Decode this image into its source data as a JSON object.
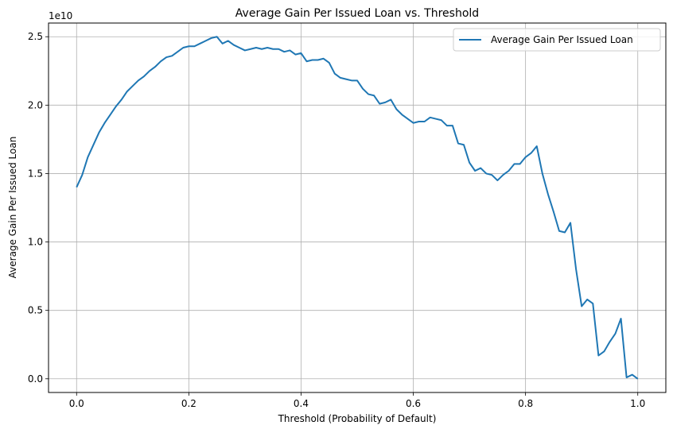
{
  "chart_data": {
    "type": "line",
    "title": "Average Gain Per Issued Loan vs. Threshold",
    "xlabel": "Threshold (Probability of Default)",
    "ylabel": "Average Gain Per Issued Loan",
    "y_offset_label": "1e10",
    "y_scale": 10000000000.0,
    "xlim": [
      -0.05,
      1.05
    ],
    "ylim": [
      -0.1,
      2.6
    ],
    "xticks": [
      0.0,
      0.2,
      0.4,
      0.6,
      0.8,
      1.0
    ],
    "xtick_labels": [
      "0.0",
      "0.2",
      "0.4",
      "0.6",
      "0.8",
      "1.0"
    ],
    "yticks": [
      0.0,
      0.5,
      1.0,
      1.5,
      2.0,
      2.5
    ],
    "ytick_labels": [
      "0.0",
      "0.5",
      "1.0",
      "1.5",
      "2.0",
      "2.5"
    ],
    "grid": true,
    "legend_position": "top-right",
    "series": [
      {
        "name": "Average Gain Per Issued Loan",
        "color": "#1f77b4",
        "x": [
          0.0,
          0.01,
          0.02,
          0.03,
          0.04,
          0.05,
          0.06,
          0.07,
          0.08,
          0.09,
          0.1,
          0.11,
          0.12,
          0.13,
          0.14,
          0.15,
          0.16,
          0.17,
          0.18,
          0.19,
          0.2,
          0.21,
          0.22,
          0.23,
          0.24,
          0.25,
          0.26,
          0.27,
          0.28,
          0.29,
          0.3,
          0.31,
          0.32,
          0.33,
          0.34,
          0.35,
          0.36,
          0.37,
          0.38,
          0.39,
          0.4,
          0.41,
          0.42,
          0.43,
          0.44,
          0.45,
          0.46,
          0.47,
          0.48,
          0.49,
          0.5,
          0.51,
          0.52,
          0.53,
          0.54,
          0.55,
          0.56,
          0.57,
          0.58,
          0.59,
          0.6,
          0.61,
          0.62,
          0.63,
          0.64,
          0.65,
          0.66,
          0.67,
          0.68,
          0.69,
          0.7,
          0.71,
          0.72,
          0.73,
          0.74,
          0.75,
          0.76,
          0.77,
          0.78,
          0.79,
          0.8,
          0.81,
          0.82,
          0.83,
          0.84,
          0.85,
          0.86,
          0.87,
          0.88,
          0.89,
          0.9,
          0.91,
          0.92,
          0.93,
          0.94,
          0.95,
          0.96,
          0.97,
          0.98,
          0.99,
          1.0
        ],
        "y": [
          1.4,
          1.49,
          1.62,
          1.71,
          1.8,
          1.87,
          1.93,
          1.99,
          2.04,
          2.1,
          2.14,
          2.18,
          2.21,
          2.25,
          2.28,
          2.32,
          2.35,
          2.36,
          2.39,
          2.42,
          2.43,
          2.43,
          2.45,
          2.47,
          2.49,
          2.5,
          2.45,
          2.47,
          2.44,
          2.42,
          2.4,
          2.41,
          2.42,
          2.41,
          2.42,
          2.41,
          2.41,
          2.39,
          2.4,
          2.37,
          2.38,
          2.32,
          2.33,
          2.33,
          2.34,
          2.31,
          2.23,
          2.2,
          2.19,
          2.18,
          2.18,
          2.12,
          2.08,
          2.07,
          2.01,
          2.02,
          2.04,
          1.97,
          1.93,
          1.9,
          1.87,
          1.88,
          1.88,
          1.91,
          1.9,
          1.89,
          1.85,
          1.85,
          1.72,
          1.71,
          1.58,
          1.52,
          1.54,
          1.5,
          1.49,
          1.45,
          1.49,
          1.52,
          1.57,
          1.57,
          1.62,
          1.65,
          1.7,
          1.5,
          1.35,
          1.22,
          1.08,
          1.07,
          1.14,
          0.8,
          0.53,
          0.58,
          0.55,
          0.17,
          0.2,
          0.27,
          0.33,
          0.44,
          0.01,
          0.03,
          0.0
        ]
      }
    ]
  }
}
